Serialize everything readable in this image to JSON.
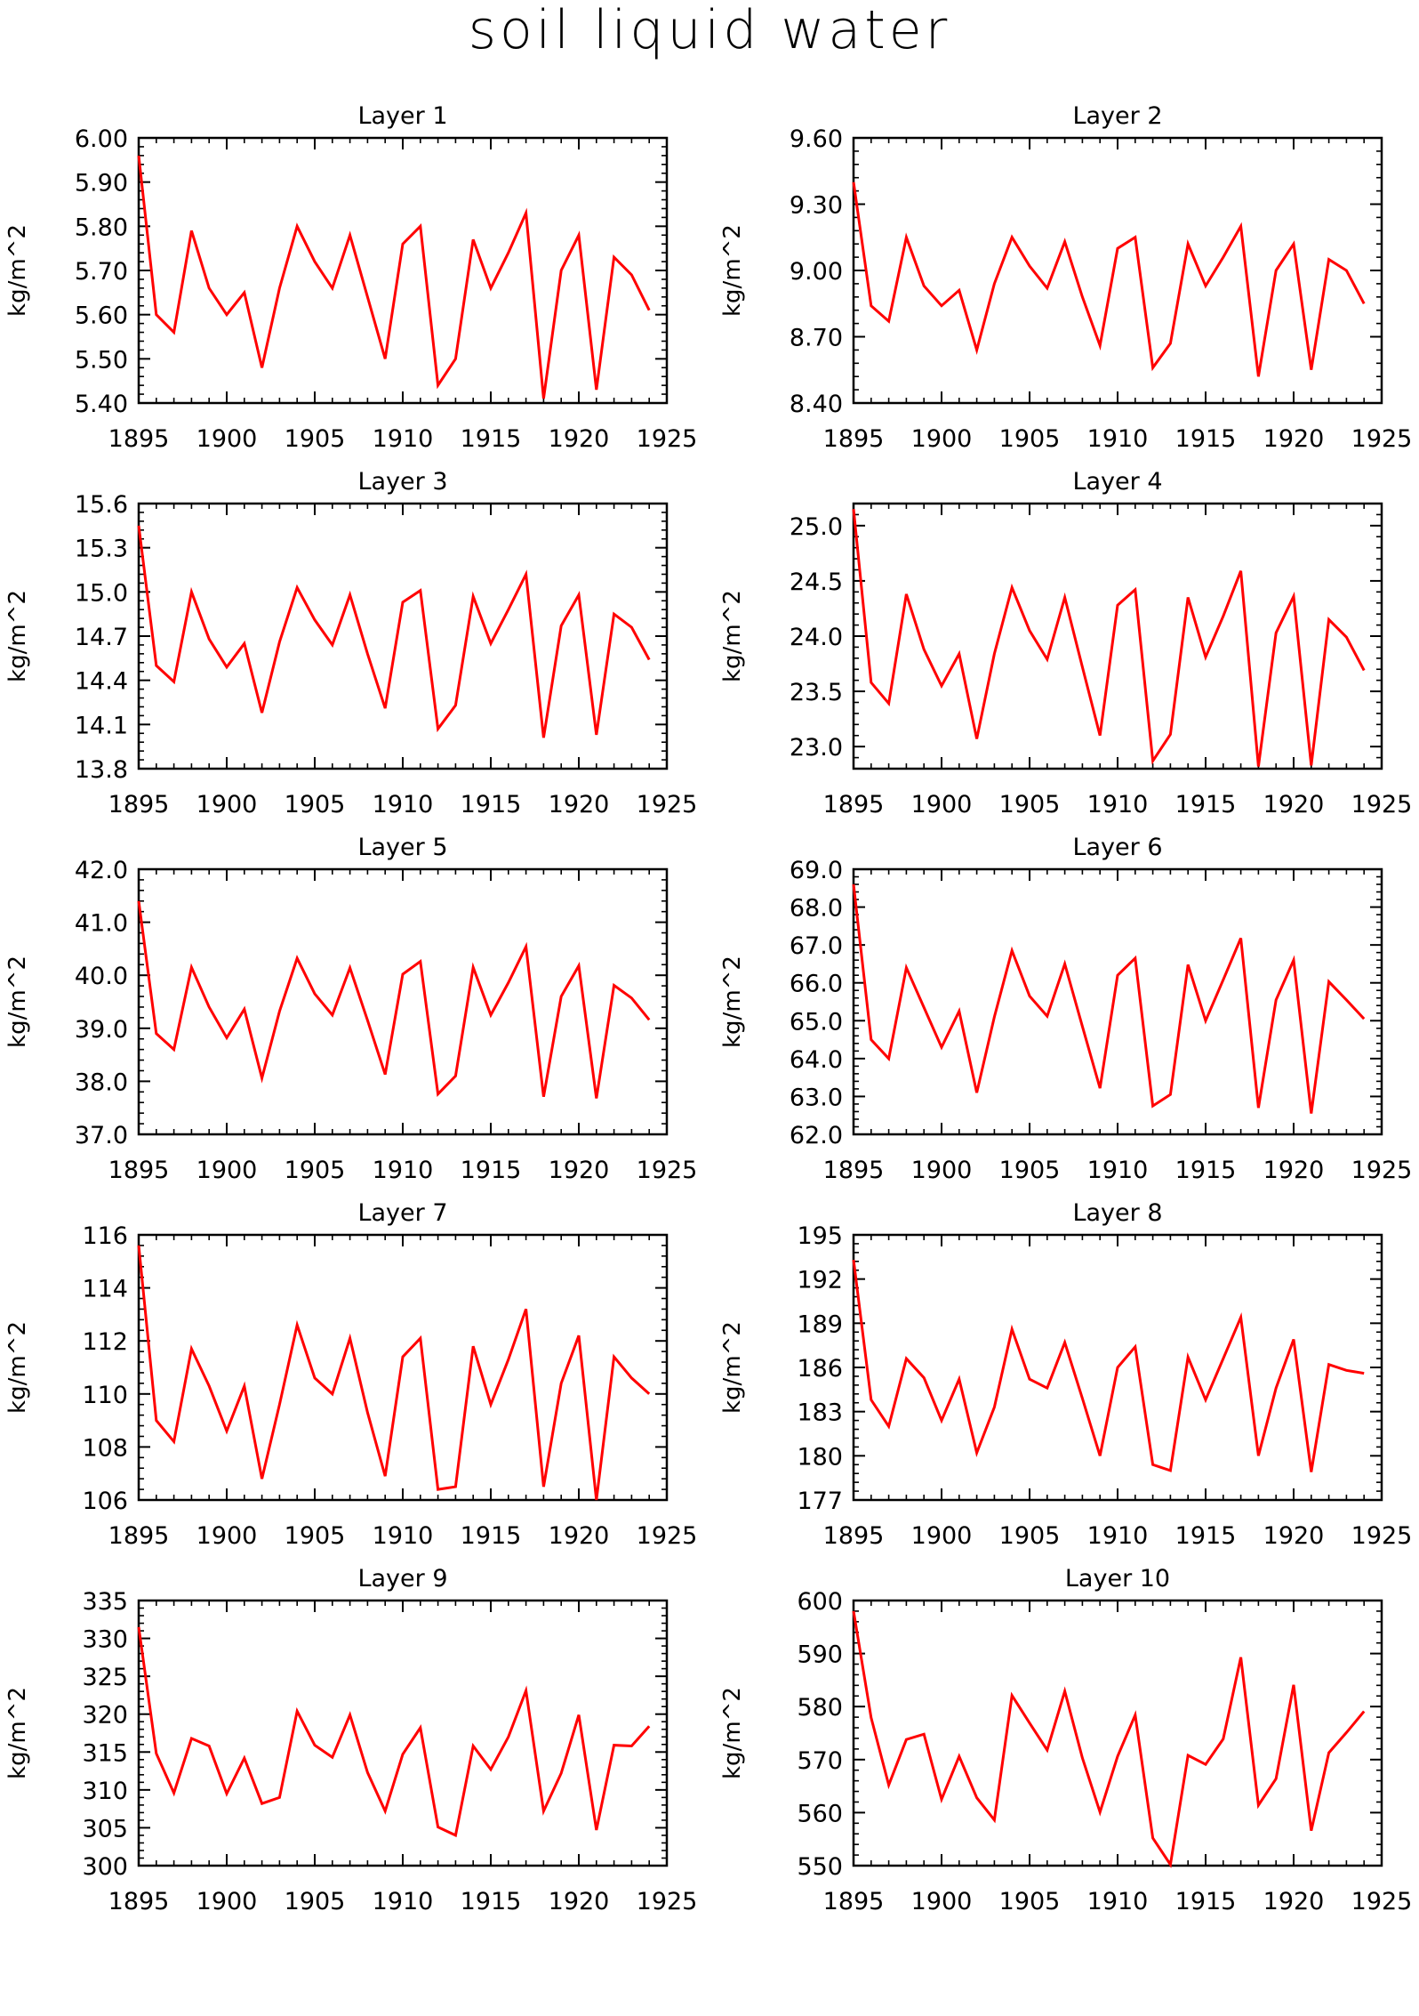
{
  "title": "soil liquid water",
  "chart_data": [
    {
      "type": "line",
      "title": "Layer 1",
      "ylabel": "kg/m^2",
      "xlim": [
        1895,
        1925
      ],
      "ylim": [
        5.4,
        6.0
      ],
      "xticks": [
        "1895",
        "1900",
        "1905",
        "1910",
        "1915",
        "1920",
        "1925"
      ],
      "yticks": [
        "5.40",
        "5.50",
        "5.60",
        "5.70",
        "5.80",
        "5.90",
        "6.00"
      ],
      "x": [
        1895,
        1896,
        1897,
        1898,
        1899,
        1900,
        1901,
        1902,
        1903,
        1904,
        1905,
        1906,
        1907,
        1908,
        1909,
        1910,
        1911,
        1912,
        1913,
        1914,
        1915,
        1916,
        1917,
        1918,
        1919,
        1920,
        1921,
        1922,
        1923,
        1924
      ],
      "series": [
        {
          "color": "#ff0000",
          "values": [
            5.96,
            5.6,
            5.56,
            5.79,
            5.66,
            5.6,
            5.65,
            5.48,
            5.66,
            5.8,
            5.72,
            5.66,
            5.78,
            5.64,
            5.5,
            5.76,
            5.8,
            5.44,
            5.5,
            5.77,
            5.66,
            5.74,
            5.83,
            5.41,
            5.7,
            5.78,
            5.43,
            5.73,
            5.69,
            5.61
          ]
        }
      ]
    },
    {
      "type": "line",
      "title": "Layer 2",
      "ylabel": "kg/m^2",
      "xlim": [
        1895,
        1925
      ],
      "ylim": [
        8.4,
        9.6
      ],
      "xticks": [
        "1895",
        "1900",
        "1905",
        "1910",
        "1915",
        "1920",
        "1925"
      ],
      "yticks": [
        "8.40",
        "8.70",
        "9.00",
        "9.30",
        "9.60"
      ],
      "x": [
        1895,
        1896,
        1897,
        1898,
        1899,
        1900,
        1901,
        1902,
        1903,
        1904,
        1905,
        1906,
        1907,
        1908,
        1909,
        1910,
        1911,
        1912,
        1913,
        1914,
        1915,
        1916,
        1917,
        1918,
        1919,
        1920,
        1921,
        1922,
        1923,
        1924
      ],
      "series": [
        {
          "color": "#ff0000",
          "values": [
            9.4,
            8.84,
            8.77,
            9.15,
            8.93,
            8.84,
            8.91,
            8.64,
            8.94,
            9.15,
            9.02,
            8.92,
            9.13,
            8.88,
            8.66,
            9.1,
            9.15,
            8.56,
            8.67,
            9.12,
            8.93,
            9.06,
            9.2,
            8.52,
            9.0,
            9.12,
            8.55,
            9.05,
            9.0,
            8.85
          ]
        }
      ]
    },
    {
      "type": "line",
      "title": "Layer 3",
      "ylabel": "kg/m^2",
      "xlim": [
        1895,
        1925
      ],
      "ylim": [
        13.8,
        15.6
      ],
      "xticks": [
        "1895",
        "1900",
        "1905",
        "1910",
        "1915",
        "1920",
        "1925"
      ],
      "yticks": [
        "13.8",
        "14.1",
        "14.4",
        "14.7",
        "15.0",
        "15.3",
        "15.6"
      ],
      "x": [
        1895,
        1896,
        1897,
        1898,
        1899,
        1900,
        1901,
        1902,
        1903,
        1904,
        1905,
        1906,
        1907,
        1908,
        1909,
        1910,
        1911,
        1912,
        1913,
        1914,
        1915,
        1916,
        1917,
        1918,
        1919,
        1920,
        1921,
        1922,
        1923,
        1924
      ],
      "series": [
        {
          "color": "#ff0000",
          "values": [
            15.45,
            14.5,
            14.39,
            15.0,
            14.68,
            14.49,
            14.65,
            14.18,
            14.66,
            15.03,
            14.81,
            14.64,
            14.98,
            14.58,
            14.21,
            14.93,
            15.01,
            14.07,
            14.23,
            14.97,
            14.65,
            14.88,
            15.12,
            14.01,
            14.77,
            14.98,
            14.03,
            14.85,
            14.76,
            14.54
          ]
        }
      ]
    },
    {
      "type": "line",
      "title": "Layer 4",
      "ylabel": "kg/m^2",
      "xlim": [
        1895,
        1925
      ],
      "ylim": [
        22.8,
        25.2
      ],
      "xticks": [
        "1895",
        "1900",
        "1905",
        "1910",
        "1915",
        "1920",
        "1925"
      ],
      "yticks": [
        "23.0",
        "23.5",
        "24.0",
        "24.5",
        "25.0"
      ],
      "x": [
        1895,
        1896,
        1897,
        1898,
        1899,
        1900,
        1901,
        1902,
        1903,
        1904,
        1905,
        1906,
        1907,
        1908,
        1909,
        1910,
        1911,
        1912,
        1913,
        1914,
        1915,
        1916,
        1917,
        1918,
        1919,
        1920,
        1921,
        1922,
        1923,
        1924
      ],
      "series": [
        {
          "color": "#ff0000",
          "values": [
            25.15,
            23.58,
            23.39,
            24.38,
            23.88,
            23.55,
            23.84,
            23.07,
            23.84,
            24.44,
            24.05,
            23.79,
            24.35,
            23.72,
            23.1,
            24.28,
            24.42,
            22.87,
            23.11,
            24.35,
            23.81,
            24.18,
            24.59,
            22.82,
            24.03,
            24.36,
            22.83,
            24.15,
            23.99,
            23.69
          ]
        }
      ]
    },
    {
      "type": "line",
      "title": "Layer 5",
      "ylabel": "kg/m^2",
      "xlim": [
        1895,
        1925
      ],
      "ylim": [
        37.0,
        42.0
      ],
      "xticks": [
        "1895",
        "1900",
        "1905",
        "1910",
        "1915",
        "1920",
        "1925"
      ],
      "yticks": [
        "37.0",
        "38.0",
        "39.0",
        "40.0",
        "41.0",
        "42.0"
      ],
      "x": [
        1895,
        1896,
        1897,
        1898,
        1899,
        1900,
        1901,
        1902,
        1903,
        1904,
        1905,
        1906,
        1907,
        1908,
        1909,
        1910,
        1911,
        1912,
        1913,
        1914,
        1915,
        1916,
        1917,
        1918,
        1919,
        1920,
        1921,
        1922,
        1923,
        1924
      ],
      "series": [
        {
          "color": "#ff0000",
          "values": [
            41.4,
            38.9,
            38.6,
            40.15,
            39.4,
            38.82,
            39.36,
            38.06,
            39.32,
            40.32,
            39.65,
            39.25,
            40.14,
            39.15,
            38.13,
            40.02,
            40.26,
            37.76,
            38.1,
            40.15,
            39.25,
            39.86,
            40.54,
            37.71,
            39.6,
            40.18,
            37.68,
            39.81,
            39.57,
            39.16
          ]
        }
      ]
    },
    {
      "type": "line",
      "title": "Layer 6",
      "ylabel": "kg/m^2",
      "xlim": [
        1895,
        1925
      ],
      "ylim": [
        62.0,
        69.0
      ],
      "xticks": [
        "1895",
        "1900",
        "1905",
        "1910",
        "1915",
        "1920",
        "1925"
      ],
      "yticks": [
        "62.0",
        "63.0",
        "64.0",
        "65.0",
        "66.0",
        "67.0",
        "68.0",
        "69.0"
      ],
      "x": [
        1895,
        1896,
        1897,
        1898,
        1899,
        1900,
        1901,
        1902,
        1903,
        1904,
        1905,
        1906,
        1907,
        1908,
        1909,
        1910,
        1911,
        1912,
        1913,
        1914,
        1915,
        1916,
        1917,
        1918,
        1919,
        1920,
        1921,
        1922,
        1923,
        1924
      ],
      "series": [
        {
          "color": "#ff0000",
          "values": [
            68.6,
            64.5,
            64.0,
            66.4,
            65.35,
            64.3,
            65.25,
            63.1,
            65.1,
            66.85,
            65.65,
            65.12,
            66.5,
            64.85,
            63.22,
            66.2,
            66.65,
            62.75,
            63.05,
            66.48,
            65.0,
            66.08,
            67.18,
            62.7,
            65.55,
            66.6,
            62.55,
            66.03,
            65.55,
            65.05
          ]
        }
      ]
    },
    {
      "type": "line",
      "title": "Layer 7",
      "ylabel": "kg/m^2",
      "xlim": [
        1895,
        1925
      ],
      "ylim": [
        106,
        116
      ],
      "xticks": [
        "1895",
        "1900",
        "1905",
        "1910",
        "1915",
        "1920",
        "1925"
      ],
      "yticks": [
        "106",
        "108",
        "110",
        "112",
        "114",
        "116"
      ],
      "x": [
        1895,
        1896,
        1897,
        1898,
        1899,
        1900,
        1901,
        1902,
        1903,
        1904,
        1905,
        1906,
        1907,
        1908,
        1909,
        1910,
        1911,
        1912,
        1913,
        1914,
        1915,
        1916,
        1917,
        1918,
        1919,
        1920,
        1921,
        1922,
        1923,
        1924
      ],
      "series": [
        {
          "color": "#ff0000",
          "values": [
            115.6,
            109.0,
            108.2,
            111.7,
            110.3,
            108.6,
            110.3,
            106.8,
            109.6,
            112.6,
            110.6,
            110.0,
            112.1,
            109.3,
            106.9,
            111.4,
            112.1,
            106.4,
            106.5,
            111.8,
            109.6,
            111.3,
            113.2,
            106.5,
            110.4,
            112.2,
            106.0,
            111.4,
            110.6,
            110.0
          ]
        }
      ]
    },
    {
      "type": "line",
      "title": "Layer 8",
      "ylabel": "kg/m^2",
      "xlim": [
        1895,
        1925
      ],
      "ylim": [
        177,
        195
      ],
      "xticks": [
        "1895",
        "1900",
        "1905",
        "1910",
        "1915",
        "1920",
        "1925"
      ],
      "yticks": [
        "177",
        "180",
        "183",
        "186",
        "189",
        "192",
        "195"
      ],
      "x": [
        1895,
        1896,
        1897,
        1898,
        1899,
        1900,
        1901,
        1902,
        1903,
        1904,
        1905,
        1906,
        1907,
        1908,
        1909,
        1910,
        1911,
        1912,
        1913,
        1914,
        1915,
        1916,
        1917,
        1918,
        1919,
        1920,
        1921,
        1922,
        1923,
        1924
      ],
      "series": [
        {
          "color": "#ff0000",
          "values": [
            193.3,
            183.8,
            182.0,
            186.6,
            185.3,
            182.4,
            185.2,
            180.2,
            183.3,
            188.6,
            185.2,
            184.6,
            187.7,
            183.9,
            180.0,
            186.0,
            187.4,
            179.4,
            179.0,
            186.7,
            183.8,
            186.6,
            189.4,
            180.0,
            184.6,
            187.9,
            178.9,
            186.2,
            185.8,
            185.6
          ]
        }
      ]
    },
    {
      "type": "line",
      "title": "Layer 9",
      "ylabel": "kg/m^2",
      "xlim": [
        1895,
        1925
      ],
      "ylim": [
        300,
        335
      ],
      "xticks": [
        "1895",
        "1900",
        "1905",
        "1910",
        "1915",
        "1920",
        "1925"
      ],
      "yticks": [
        "300",
        "305",
        "310",
        "315",
        "320",
        "325",
        "330",
        "335"
      ],
      "x": [
        1895,
        1896,
        1897,
        1898,
        1899,
        1900,
        1901,
        1902,
        1903,
        1904,
        1905,
        1906,
        1907,
        1908,
        1909,
        1910,
        1911,
        1912,
        1913,
        1914,
        1915,
        1916,
        1917,
        1918,
        1919,
        1920,
        1921,
        1922,
        1923,
        1924
      ],
      "series": [
        {
          "color": "#ff0000",
          "values": [
            331.5,
            314.8,
            309.6,
            316.8,
            315.8,
            309.5,
            314.2,
            308.2,
            309.0,
            320.4,
            315.9,
            314.3,
            319.9,
            312.3,
            307.2,
            314.7,
            318.2,
            305.1,
            304.0,
            315.8,
            312.7,
            317.0,
            323.1,
            307.2,
            312.2,
            319.9,
            304.7,
            315.9,
            315.8,
            318.4
          ]
        }
      ]
    },
    {
      "type": "line",
      "title": "Layer 10",
      "ylabel": "kg/m^2",
      "xlim": [
        1895,
        1925
      ],
      "ylim": [
        550,
        600
      ],
      "xticks": [
        "1895",
        "1900",
        "1905",
        "1910",
        "1915",
        "1920",
        "1925"
      ],
      "yticks": [
        "550",
        "560",
        "570",
        "580",
        "590",
        "600"
      ],
      "x": [
        1895,
        1896,
        1897,
        1898,
        1899,
        1900,
        1901,
        1902,
        1903,
        1904,
        1905,
        1906,
        1907,
        1908,
        1909,
        1910,
        1911,
        1912,
        1913,
        1914,
        1915,
        1916,
        1917,
        1918,
        1919,
        1920,
        1921,
        1922,
        1923,
        1924
      ],
      "series": [
        {
          "color": "#ff0000",
          "values": [
            598.0,
            577.9,
            565.2,
            573.8,
            574.8,
            562.5,
            570.6,
            562.8,
            558.6,
            582.1,
            576.9,
            571.8,
            582.9,
            570.3,
            560.1,
            570.6,
            578.4,
            555.2,
            550.2,
            570.8,
            569.1,
            573.9,
            589.3,
            561.4,
            566.4,
            584.1,
            556.6,
            571.3,
            575.1,
            579.1
          ]
        }
      ]
    }
  ]
}
